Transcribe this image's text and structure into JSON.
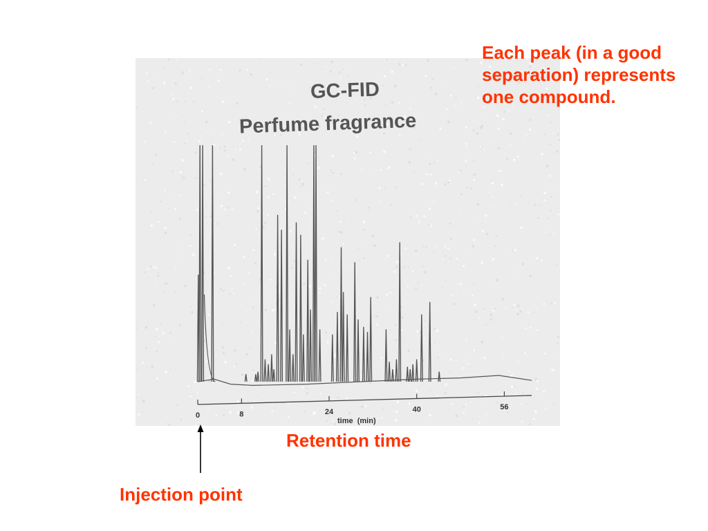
{
  "slide": {
    "peak_note": "Each peak (in a good separation) represents one compound.",
    "retention_label": "Retention time",
    "injection_label": "Injection point",
    "annotation_color": "#ff3300"
  },
  "chart_data": {
    "type": "line",
    "title": [
      "GC-FID",
      "Perfume fragrance"
    ],
    "xlabel": "time  (min)",
    "ylabel": "",
    "x_ticks": [
      0,
      8,
      24,
      40,
      56
    ],
    "xlim": [
      0,
      61
    ],
    "ylim": [
      0,
      100
    ],
    "grid": false,
    "legend": "none",
    "baseline_start": 5,
    "baseline_end": 5,
    "trace_color": "#555555",
    "peaks": [
      {
        "x": 0.1,
        "y": 48
      },
      {
        "x": 0.4,
        "y": 100
      },
      {
        "x": 0.9,
        "y": 100
      },
      {
        "x": 2.7,
        "y": 100
      },
      {
        "x": 8.8,
        "y": 8
      },
      {
        "x": 10.6,
        "y": 8
      },
      {
        "x": 11.0,
        "y": 9
      },
      {
        "x": 11.7,
        "y": 100
      },
      {
        "x": 12.3,
        "y": 14
      },
      {
        "x": 12.9,
        "y": 12
      },
      {
        "x": 13.5,
        "y": 16
      },
      {
        "x": 13.9,
        "y": 10
      },
      {
        "x": 14.6,
        "y": 72
      },
      {
        "x": 15.3,
        "y": 66
      },
      {
        "x": 16.3,
        "y": 100
      },
      {
        "x": 16.8,
        "y": 26
      },
      {
        "x": 17.4,
        "y": 16
      },
      {
        "x": 18.0,
        "y": 69
      },
      {
        "x": 18.8,
        "y": 64
      },
      {
        "x": 19.3,
        "y": 24
      },
      {
        "x": 20.1,
        "y": 54
      },
      {
        "x": 20.6,
        "y": 34
      },
      {
        "x": 21.2,
        "y": 100
      },
      {
        "x": 21.6,
        "y": 100
      },
      {
        "x": 22.3,
        "y": 26
      },
      {
        "x": 24.6,
        "y": 24
      },
      {
        "x": 25.5,
        "y": 33
      },
      {
        "x": 26.2,
        "y": 59
      },
      {
        "x": 26.6,
        "y": 41
      },
      {
        "x": 27.3,
        "y": 32
      },
      {
        "x": 28.7,
        "y": 53
      },
      {
        "x": 29.3,
        "y": 30
      },
      {
        "x": 30.3,
        "y": 27
      },
      {
        "x": 31.0,
        "y": 25
      },
      {
        "x": 31.6,
        "y": 39
      },
      {
        "x": 34.4,
        "y": 26
      },
      {
        "x": 35.0,
        "y": 13
      },
      {
        "x": 35.6,
        "y": 10
      },
      {
        "x": 36.3,
        "y": 14
      },
      {
        "x": 36.9,
        "y": 61
      },
      {
        "x": 38.3,
        "y": 11
      },
      {
        "x": 38.8,
        "y": 10
      },
      {
        "x": 39.3,
        "y": 12
      },
      {
        "x": 40.0,
        "y": 14
      },
      {
        "x": 40.9,
        "y": 32
      },
      {
        "x": 42.4,
        "y": 37
      },
      {
        "x": 44.1,
        "y": 9
      }
    ]
  }
}
